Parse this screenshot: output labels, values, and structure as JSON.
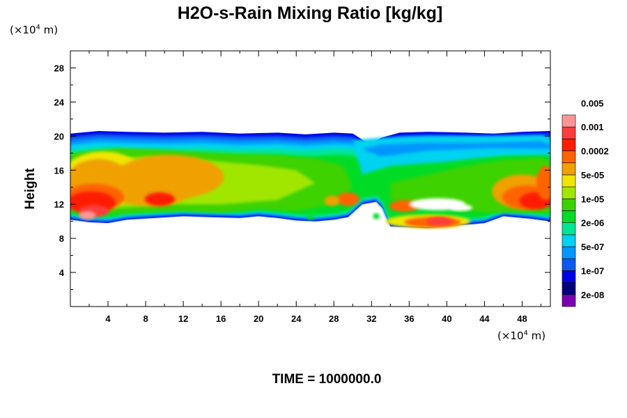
{
  "chart_data": {
    "type": "heatmap",
    "title": "H2O-s-Rain Mixing Ratio [kg/kg]",
    "ylabel": "Height",
    "x_unit": {
      "prefix": "(×10",
      "exp": "4",
      "suffix": " m)"
    },
    "y_unit": {
      "prefix": "(×10",
      "exp": "4",
      "suffix": " m)"
    },
    "xlim": [
      0,
      51
    ],
    "ylim": [
      0,
      30
    ],
    "x_ticks": [
      "4",
      "8",
      "12",
      "16",
      "20",
      "24",
      "28",
      "32",
      "36",
      "40",
      "44",
      "48"
    ],
    "y_ticks": [
      "4",
      "8",
      "12",
      "16",
      "20",
      "24",
      "28"
    ],
    "colorbar": {
      "colors": [
        "#7b00b4",
        "#00007f",
        "#0000e6",
        "#0a5af0",
        "#0096ff",
        "#00d2f0",
        "#00e696",
        "#00dc28",
        "#3cd200",
        "#a0e600",
        "#f0e600",
        "#f0a000",
        "#ff6400",
        "#ff1e00",
        "#ff3c3c",
        "#ff9696"
      ],
      "labels": [
        "2e-08",
        "1e-07",
        "5e-07",
        "2e-06",
        "1e-05",
        "5e-05",
        "0.0002",
        "0.001",
        "0.005"
      ]
    },
    "field_summary": {
      "cloud_top_km": 20.5,
      "cloud_base_km": 10,
      "high_values_regions": [
        "x 0-12 y 10-18",
        "x 34-42 y 9-11",
        "x 44-51 y 11-16"
      ]
    },
    "grid": false
  },
  "footer": {
    "time_label": "TIME = 1000000.0"
  }
}
